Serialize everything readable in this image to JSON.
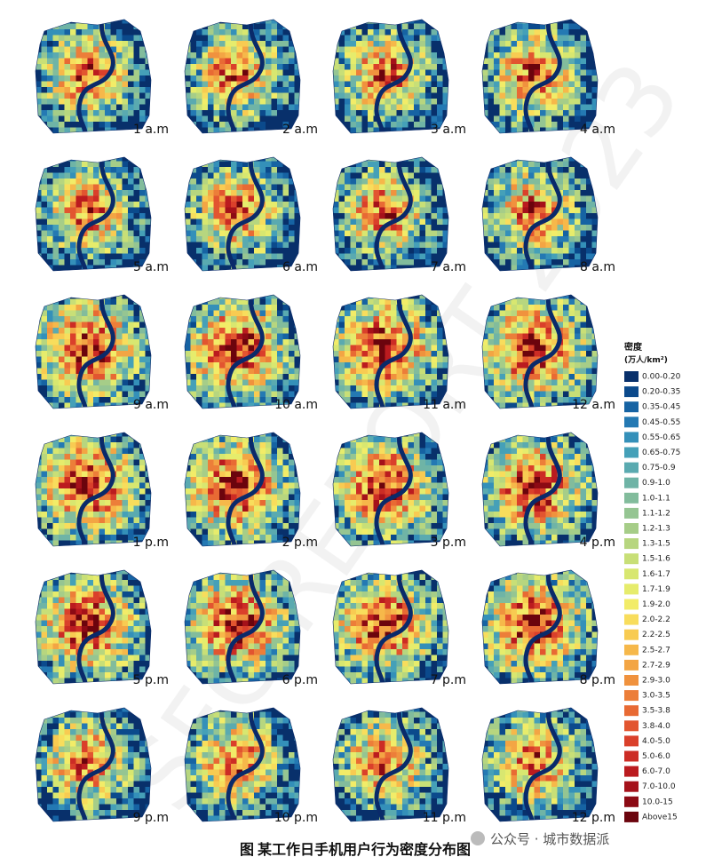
{
  "panels": [
    "1 a.m",
    "2 a.m",
    "3 a.m",
    "4 a.m",
    "5 a.m",
    "6 a.m",
    "7 a.m",
    "8 a.m",
    "9 a.m",
    "10 a.m",
    "11 a.m",
    "12 a.m",
    "1 p.m",
    "2 p.m",
    "3 p.m",
    "4 p.m",
    "5 p.m",
    "6 p.m",
    "7 p.m",
    "8 p.m",
    "9 p.m",
    "10 p.m",
    "11 p.m",
    "12 p.m"
  ],
  "legend": {
    "title": "密度",
    "unit": "(万人/km²)",
    "items": [
      {
        "label": "0.00-0.20",
        "color": "#08306b"
      },
      {
        "label": "0.20-0.35",
        "color": "#0b4a8c"
      },
      {
        "label": "0.35-0.45",
        "color": "#1663a3"
      },
      {
        "label": "0.45-0.55",
        "color": "#2479b3"
      },
      {
        "label": "0.55-0.65",
        "color": "#3490b9"
      },
      {
        "label": "0.65-0.75",
        "color": "#45a0b8"
      },
      {
        "label": "0.75-0.9",
        "color": "#5aaab0"
      },
      {
        "label": "0.9-1.0",
        "color": "#6fb4a6"
      },
      {
        "label": "1.0-1.1",
        "color": "#82bc9c"
      },
      {
        "label": "1.1-1.2",
        "color": "#95c592"
      },
      {
        "label": "1.2-1.3",
        "color": "#a6cd88"
      },
      {
        "label": "1.3-1.5",
        "color": "#b7d67f"
      },
      {
        "label": "1.5-1.6",
        "color": "#c8df77"
      },
      {
        "label": "1.6-1.7",
        "color": "#d8e770"
      },
      {
        "label": "1.7-1.9",
        "color": "#e6ec6c"
      },
      {
        "label": "1.9-2.0",
        "color": "#f2ec68"
      },
      {
        "label": "2.0-2.2",
        "color": "#f8dd5c"
      },
      {
        "label": "2.2-2.5",
        "color": "#f8cb52"
      },
      {
        "label": "2.5-2.7",
        "color": "#f6b84a"
      },
      {
        "label": "2.7-2.9",
        "color": "#f3a544"
      },
      {
        "label": "2.9-3.0",
        "color": "#f0923e"
      },
      {
        "label": "3.0-3.5",
        "color": "#ec7e39"
      },
      {
        "label": "3.5-3.8",
        "color": "#e86a34"
      },
      {
        "label": "3.8-4.0",
        "color": "#e25530"
      },
      {
        "label": "4.0-5.0",
        "color": "#da402b"
      },
      {
        "label": "5.0-6.0",
        "color": "#cc2c25"
      },
      {
        "label": "6.0-7.0",
        "color": "#bb1b1f"
      },
      {
        "label": "7.0-10.0",
        "color": "#a5111a"
      },
      {
        "label": "10.0-15",
        "color": "#8c0a14"
      },
      {
        "label": "Above15",
        "color": "#6b040d"
      }
    ]
  },
  "caption": "图 某工作日手机用户行为密度分布图",
  "watermark": "公众号 · 城市数据派",
  "background_mark": "SFC REPORT 2023"
}
